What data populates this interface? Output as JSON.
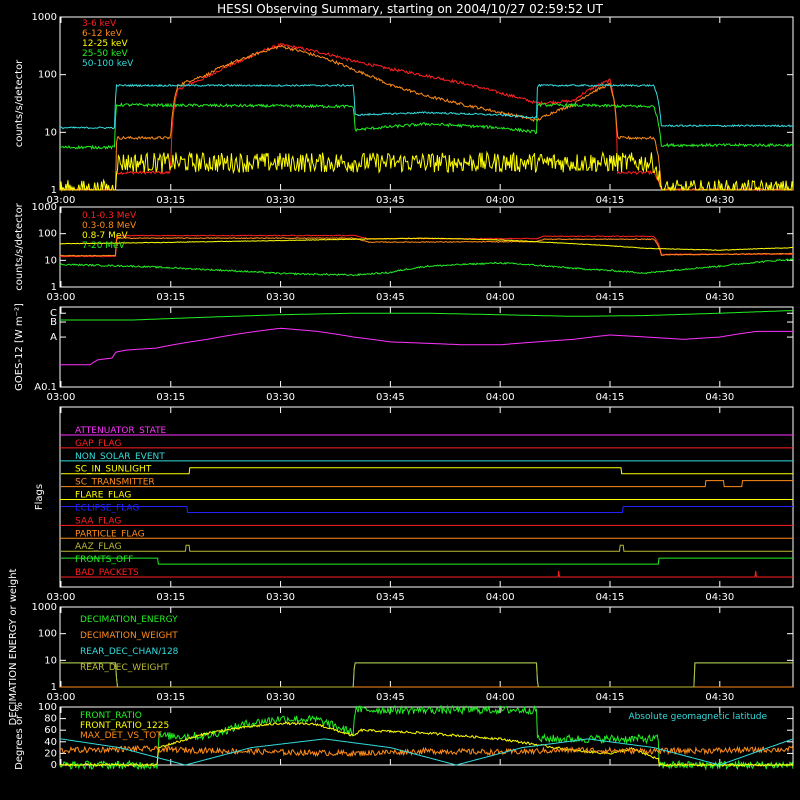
{
  "title": "HESSI Observing Summary, starting on 2004/10/27 02:59:52 UT",
  "time_ticks": [
    "03:00",
    "03:15",
    "03:30",
    "03:45",
    "04:00",
    "04:15",
    "04:30"
  ],
  "time_ticks_minutes": [
    0,
    15,
    30,
    45,
    60,
    75,
    90
  ],
  "time_range_minutes": [
    -0.13,
    100
  ],
  "colors": {
    "background": "#000000",
    "axes": "#ffffff",
    "red": "#ff2020",
    "orange": "#ff8c1a",
    "yellow": "#ffff00",
    "green": "#22ee22",
    "cyan": "#33dddd",
    "magenta": "#ff33ff",
    "blue": "#2222ff",
    "olive": "#bbbb33"
  },
  "chart_data": [
    {
      "id": "xray",
      "type": "line",
      "ylabel": "counts/s/detector",
      "yscale": "log",
      "ylim": [
        1,
        1000
      ],
      "ytick_values": [
        1,
        10,
        100,
        1000
      ],
      "ytick_labels": [
        "1",
        "10",
        "100",
        "1000"
      ],
      "series": [
        {
          "name": "3-6 keV",
          "color": "red",
          "x": [
            0,
            7.5,
            7.6,
            15,
            16,
            20,
            25,
            30,
            35,
            40,
            45,
            50,
            55,
            60,
            65,
            70,
            75,
            76,
            81,
            82,
            100
          ],
          "y": [
            1,
            1,
            2,
            2,
            55,
            90,
            180,
            330,
            250,
            170,
            125,
            95,
            70,
            48,
            32,
            35,
            80,
            2,
            2,
            1,
            1
          ]
        },
        {
          "name": "6-12 keV",
          "color": "orange",
          "x": [
            0,
            7.5,
            7.6,
            15,
            16,
            20,
            25,
            30,
            35,
            40,
            45,
            50,
            55,
            60,
            65,
            70,
            75,
            76,
            81,
            82,
            100
          ],
          "y": [
            1,
            1,
            8,
            8,
            65,
            100,
            190,
            310,
            210,
            120,
            65,
            42,
            30,
            22,
            16,
            30,
            68,
            8,
            8,
            1,
            1
          ]
        },
        {
          "name": "12-25 keV",
          "color": "yellow",
          "x": [
            0,
            7.5,
            7.6,
            81,
            82,
            100
          ],
          "y": [
            1,
            1,
            3,
            3,
            1,
            1
          ]
        },
        {
          "name": "25-50 keV",
          "color": "green",
          "x": [
            0,
            7.4,
            7.5,
            40,
            40.1,
            50,
            60,
            65,
            65.1,
            81,
            82,
            100
          ],
          "y": [
            5.5,
            5.5,
            30,
            28,
            11,
            14,
            12,
            10,
            30,
            28,
            6,
            6
          ]
        },
        {
          "name": "50-100 keV",
          "color": "cyan",
          "x": [
            0,
            7.4,
            7.5,
            40,
            40.1,
            50,
            60,
            65,
            65.1,
            81,
            82,
            100
          ],
          "y": [
            12,
            12,
            65,
            65,
            20,
            22,
            20,
            18,
            65,
            65,
            13,
            13
          ]
        }
      ]
    },
    {
      "id": "gamma",
      "type": "line",
      "ylabel": "counts/s/detector",
      "yscale": "log",
      "ylim": [
        1,
        1000
      ],
      "ytick_values": [
        1,
        10,
        100,
        1000
      ],
      "ytick_labels": [
        "1",
        "10",
        "100",
        "1000"
      ],
      "series": [
        {
          "name": "0.1-0.3 MeV",
          "color": "red",
          "x": [
            0,
            7.5,
            7.6,
            40,
            42,
            65,
            66,
            81,
            82,
            100
          ],
          "y": [
            14,
            14,
            85,
            85,
            65,
            65,
            80,
            80,
            17,
            17
          ]
        },
        {
          "name": "0.3-0.8 MeV",
          "color": "orange",
          "x": [
            0,
            7.5,
            7.6,
            40,
            42,
            65,
            66,
            81,
            82,
            100
          ],
          "y": [
            15,
            15,
            68,
            68,
            48,
            50,
            62,
            62,
            16,
            18
          ]
        },
        {
          "name": "0.8-7 MeV",
          "color": "yellow",
          "x": [
            0,
            10,
            20,
            30,
            40,
            50,
            60,
            70,
            80,
            90,
            100
          ],
          "y": [
            42,
            45,
            50,
            55,
            62,
            68,
            58,
            42,
            28,
            24,
            30
          ]
        },
        {
          "name": "7-20 MeV",
          "color": "green",
          "x": [
            0,
            10,
            20,
            30,
            40,
            45,
            50,
            60,
            70,
            80,
            90,
            100
          ],
          "y": [
            7,
            6,
            4.5,
            3.2,
            2.8,
            3.5,
            6,
            8,
            5,
            3.3,
            6,
            11
          ]
        }
      ]
    },
    {
      "id": "goes",
      "type": "line",
      "ylabel": "GOES-12 [W m⁻²]",
      "yscale": "log",
      "ylim": [
        0.1,
        4
      ],
      "ytick_values": [
        0.1,
        1,
        2,
        3
      ],
      "ytick_labels": [
        "A0.1",
        "A",
        "B",
        "C"
      ],
      "series": [
        {
          "name": "",
          "color": "magenta",
          "x": [
            0,
            4,
            5,
            7,
            7.5,
            9,
            13,
            20,
            25,
            30,
            35,
            40,
            45,
            55,
            60,
            65,
            70,
            75,
            80,
            85,
            90,
            95,
            100
          ],
          "y": [
            0.28,
            0.28,
            0.35,
            0.38,
            0.5,
            0.55,
            0.6,
            0.9,
            1.2,
            1.5,
            1.3,
            1.0,
            0.8,
            0.7,
            0.7,
            0.8,
            0.9,
            1.1,
            1.0,
            0.9,
            1.0,
            1.3,
            1.3
          ]
        },
        {
          "name": "",
          "color": "green",
          "x": [
            0,
            10,
            20,
            30,
            40,
            50,
            60,
            70,
            80,
            90,
            100
          ],
          "y": [
            2.2,
            2.2,
            2.5,
            2.8,
            3.0,
            3.0,
            2.8,
            2.6,
            2.7,
            3.0,
            3.4
          ]
        }
      ]
    },
    {
      "id": "flags",
      "type": "line",
      "ylabel": "Flags",
      "flags": [
        {
          "name": "ATTENUATOR_STATE",
          "color": "magenta"
        },
        {
          "name": "GAP_FLAG",
          "color": "red"
        },
        {
          "name": "NON_SOLAR_EVENT",
          "color": "cyan"
        },
        {
          "name": "SC_IN_SUNLIGHT",
          "color": "yellow",
          "x": [
            0,
            17.5,
            17.6,
            76.5,
            76.6,
            100
          ],
          "y": [
            0,
            0,
            1,
            1,
            0,
            0
          ]
        },
        {
          "name": "SC_TRANSMITTER",
          "color": "orange",
          "x": [
            0,
            88,
            88.1,
            90.5,
            90.6,
            93,
            93.1,
            100
          ],
          "y": [
            0,
            0,
            1,
            1,
            0,
            0,
            1,
            1
          ]
        },
        {
          "name": "FLARE_FLAG",
          "color": "yellow"
        },
        {
          "name": "ECLIPSE_FLAG",
          "color": "blue",
          "x": [
            0,
            17.2,
            17.3,
            76.7,
            76.8,
            100
          ],
          "y": [
            1,
            1,
            0,
            0,
            1,
            1
          ]
        },
        {
          "name": "SAA_FLAG",
          "color": "red"
        },
        {
          "name": "PARTICLE_FLAG",
          "color": "orange"
        },
        {
          "name": "AAZ_FLAG",
          "color": "olive",
          "x": [
            0,
            17,
            17.1,
            17.5,
            17.6,
            76.3,
            76.4,
            76.8,
            76.9,
            100
          ],
          "y": [
            0,
            0,
            1,
            1,
            0,
            0,
            1,
            1,
            0,
            0
          ]
        },
        {
          "name": "FRONTS_OFF",
          "color": "green",
          "x": [
            0,
            13.2,
            13.3,
            81.6,
            81.7,
            100
          ],
          "y": [
            1,
            1,
            0,
            0,
            1,
            1
          ]
        },
        {
          "name": "BAD_PACKETS",
          "color": "red",
          "x": [
            0,
            67.9,
            68,
            68.1,
            94.8,
            94.9,
            95,
            100
          ],
          "y": [
            0,
            0,
            1,
            0,
            0,
            1,
            0,
            0
          ]
        }
      ]
    },
    {
      "id": "decimation",
      "type": "line",
      "ylabel": "DECIMATION ENERGY or weight",
      "yscale": "log",
      "ylim": [
        1,
        1000
      ],
      "ytick_values": [
        1,
        10,
        100,
        1000
      ],
      "ytick_labels": [
        "1",
        "10",
        "100",
        "1000"
      ],
      "series": [
        {
          "name": "DECIMATION_ENERGY",
          "color": "green",
          "x": [
            0,
            100
          ],
          "y": [
            1,
            1
          ]
        },
        {
          "name": "DECIMATION_WEIGHT",
          "color": "orange",
          "x": [
            0,
            100
          ],
          "y": [
            1,
            1
          ]
        },
        {
          "name": "REAR_DEC_CHAN/128",
          "color": "cyan",
          "x": [
            0,
            7.5,
            7.6,
            40,
            40.1,
            65,
            65.1,
            86.5,
            86.6,
            100
          ],
          "y": [
            8,
            8,
            1,
            1,
            8,
            8,
            1,
            1,
            8,
            8
          ]
        },
        {
          "name": "REAR_DEC_WEIGHT",
          "color": "olive",
          "x": [
            0,
            7.5,
            7.6,
            40,
            40.1,
            65,
            65.1,
            86.5,
            86.6,
            100
          ],
          "y": [
            8,
            8,
            1,
            1,
            8,
            8,
            1,
            1,
            8,
            8
          ]
        }
      ]
    },
    {
      "id": "ratio",
      "type": "line",
      "ylabel": "Degrees or %",
      "ylim": [
        0,
        100
      ],
      "ytick_values": [
        0,
        20,
        40,
        60,
        80,
        100
      ],
      "ytick_labels": [
        "0",
        "20",
        "40",
        "60",
        "80",
        "100"
      ],
      "annotation": "Absolute geomagnetic latitude",
      "series": [
        {
          "name": "FRONT_RATIO",
          "color": "green",
          "x": [
            0,
            13.2,
            13.3,
            20,
            25,
            30,
            35,
            40,
            40.1,
            65,
            65.1,
            81.6,
            81.7,
            100
          ],
          "y": [
            0,
            0,
            50,
            50,
            70,
            80,
            78,
            55,
            95,
            95,
            45,
            45,
            0,
            0
          ]
        },
        {
          "name": "FRONT_RATIO_1225",
          "color": "yellow",
          "x": [
            0,
            13.2,
            13.3,
            20,
            25,
            30,
            35,
            40,
            41,
            50,
            60,
            65,
            70,
            75,
            78,
            81.6,
            81.7,
            100
          ],
          "y": [
            0,
            0,
            30,
            55,
            65,
            72,
            70,
            50,
            60,
            55,
            45,
            35,
            25,
            20,
            28,
            10,
            0,
            0
          ]
        },
        {
          "name": "MAX_DET_VS_TOT",
          "color": "orange",
          "x": [
            0,
            10,
            20,
            30,
            40,
            50,
            60,
            70,
            80,
            90,
            100
          ],
          "y": [
            25,
            28,
            25,
            22,
            20,
            24,
            22,
            26,
            24,
            25,
            27
          ]
        },
        {
          "name": "Absolute geomagnetic latitude",
          "color": "cyan",
          "x": [
            0,
            8,
            17,
            26,
            36,
            45,
            54,
            63,
            72,
            81,
            90,
            100
          ],
          "y": [
            45,
            30,
            0,
            30,
            45,
            30,
            0,
            30,
            45,
            30,
            0,
            45
          ]
        }
      ]
    }
  ]
}
